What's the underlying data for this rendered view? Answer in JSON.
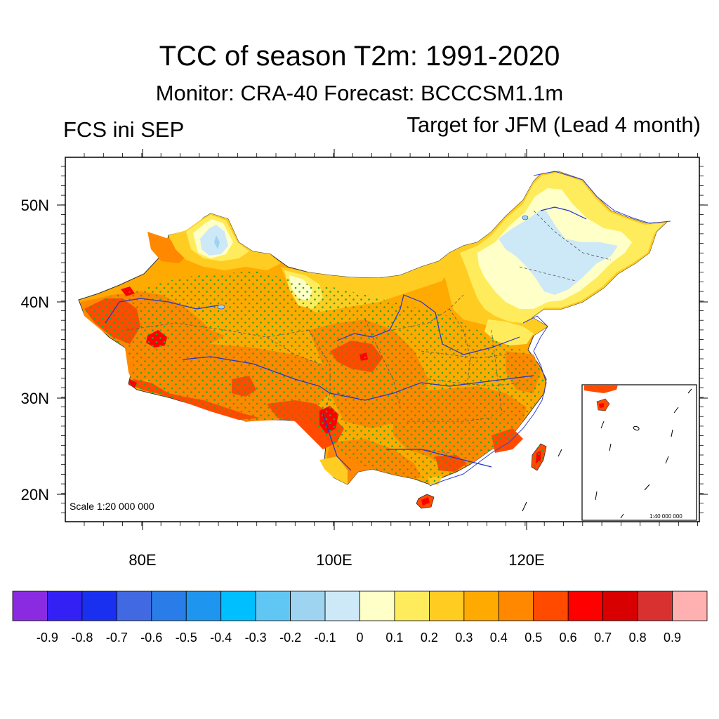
{
  "title": "TCC of season T2m: 1991-2020",
  "subtitle": "Monitor: CRA-40   Forecast: BCCCSM1.1m",
  "left_label": "FCS ini SEP",
  "right_label": "Target for JFM (Lead 4 month)",
  "map": {
    "scale_text": "Scale 1:20 000 000",
    "inset_scale_text": "1:40 000 000",
    "lat_labels": [
      "50N",
      "40N",
      "30N",
      "20N"
    ],
    "lon_labels": [
      "80E",
      "100E",
      "120E"
    ]
  },
  "colorbar": {
    "colors": [
      "#8a2be2",
      "#3320f5",
      "#1a30f0",
      "#4169e1",
      "#2a7de8",
      "#1e96f0",
      "#00bfff",
      "#60c6f4",
      "#9fd4f0",
      "#cde9f8",
      "#ffffc8",
      "#ffec5c",
      "#ffcc22",
      "#ffaa00",
      "#ff8800",
      "#ff4a00",
      "#ff0000",
      "#d80000",
      "#d93030",
      "#ffb0b0"
    ],
    "labels": [
      "-0.9",
      "-0.8",
      "-0.7",
      "-0.6",
      "-0.5",
      "-0.4",
      "-0.3",
      "-0.2",
      "-0.1",
      "0",
      "0.1",
      "0.2",
      "0.3",
      "0.4",
      "0.5",
      "0.6",
      "0.7",
      "0.8",
      "0.9"
    ]
  }
}
